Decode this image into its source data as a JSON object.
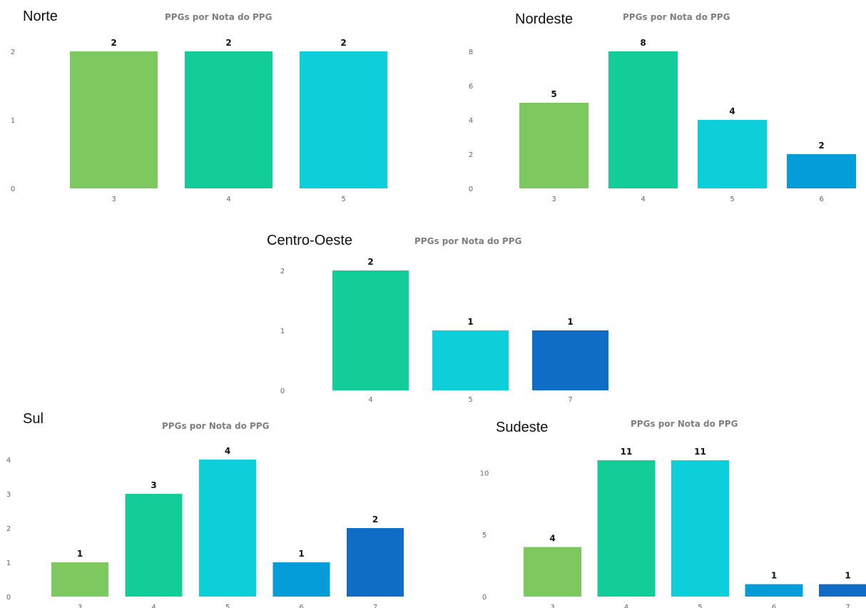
{
  "chart_title": "PPGs por Nota do PPG",
  "colors": {
    "3": "#7ec860",
    "4": "#13cd98",
    "5": "#0dcfda",
    "6": "#049cd9",
    "7": "#0f6dc6"
  },
  "chart_data": [
    {
      "id": "norte",
      "type": "bar",
      "region": "Norte",
      "title": "PPGs por Nota do PPG",
      "categories": [
        "3",
        "4",
        "5"
      ],
      "values": [
        2,
        2,
        2
      ],
      "yticks": [
        0,
        1,
        2
      ],
      "ylim": [
        0,
        2
      ]
    },
    {
      "id": "nordeste",
      "type": "bar",
      "region": "Nordeste",
      "title": "PPGs por Nota do PPG",
      "categories": [
        "3",
        "4",
        "5",
        "6"
      ],
      "values": [
        5,
        8,
        4,
        2
      ],
      "yticks": [
        0,
        2,
        4,
        6,
        8
      ],
      "ylim": [
        0,
        8
      ]
    },
    {
      "id": "centro-oeste",
      "type": "bar",
      "region": "Centro-Oeste",
      "title": "PPGs por Nota do PPG",
      "categories": [
        "4",
        "5",
        "7"
      ],
      "values": [
        2,
        1,
        1
      ],
      "yticks": [
        0,
        1,
        2
      ],
      "ylim": [
        0,
        2
      ]
    },
    {
      "id": "sul",
      "type": "bar",
      "region": "Sul",
      "title": "PPGs por Nota do PPG",
      "categories": [
        "3",
        "4",
        "5",
        "6",
        "7"
      ],
      "values": [
        1,
        3,
        4,
        1,
        2
      ],
      "yticks": [
        0,
        1,
        2,
        3,
        4
      ],
      "ylim": [
        0,
        4
      ]
    },
    {
      "id": "sudeste",
      "type": "bar",
      "region": "Sudeste",
      "title": "PPGs por Nota do PPG",
      "categories": [
        "3",
        "4",
        "5",
        "6",
        "7"
      ],
      "values": [
        4,
        11,
        11,
        1,
        1
      ],
      "yticks": [
        0,
        5,
        10
      ],
      "ylim": [
        0,
        11
      ]
    }
  ]
}
